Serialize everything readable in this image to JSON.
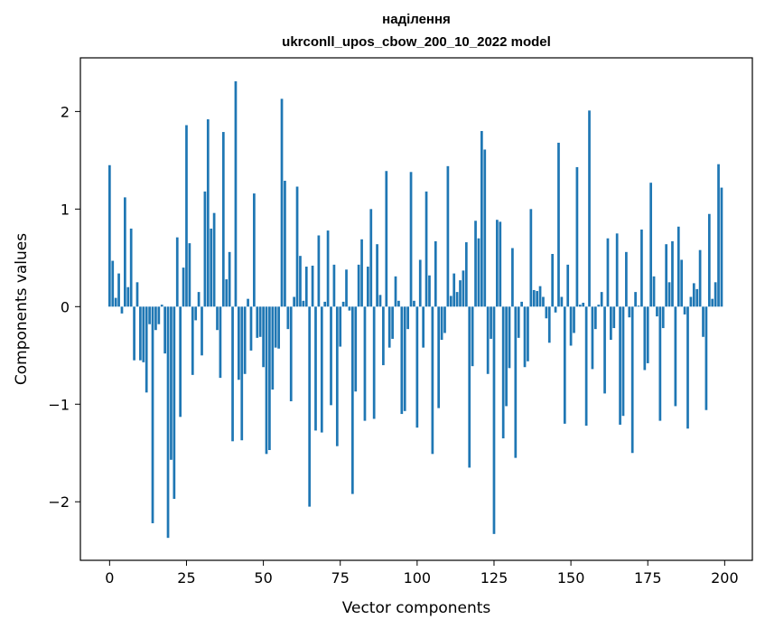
{
  "chart_data": {
    "type": "bar",
    "title": "наділення",
    "subtitle": "ukrconll_upos_cbow_200_10_2022 model",
    "xlabel": "Vector components",
    "ylabel": "Components values",
    "xlim": [
      -9.5,
      209
    ],
    "ylim": [
      -2.6,
      2.55
    ],
    "xticks": [
      0,
      25,
      50,
      75,
      100,
      125,
      150,
      175,
      200
    ],
    "xtick_labels": [
      "0",
      "25",
      "50",
      "75",
      "100",
      "125",
      "150",
      "175",
      "200"
    ],
    "yticks": [
      -2,
      -1,
      0,
      1,
      2
    ],
    "ytick_labels": [
      "−2",
      "−1",
      "0",
      "1",
      "2"
    ],
    "bar_color": "#1f77b4",
    "grid": false,
    "legend": "none",
    "x": [
      0,
      1,
      2,
      3,
      4,
      5,
      6,
      7,
      8,
      9,
      10,
      11,
      12,
      13,
      14,
      15,
      16,
      17,
      18,
      19,
      20,
      21,
      22,
      23,
      24,
      25,
      26,
      27,
      28,
      29,
      30,
      31,
      32,
      33,
      34,
      35,
      36,
      37,
      38,
      39,
      40,
      41,
      42,
      43,
      44,
      45,
      46,
      47,
      48,
      49,
      50,
      51,
      52,
      53,
      54,
      55,
      56,
      57,
      58,
      59,
      60,
      61,
      62,
      63,
      64,
      65,
      66,
      67,
      68,
      69,
      70,
      71,
      72,
      73,
      74,
      75,
      76,
      77,
      78,
      79,
      80,
      81,
      82,
      83,
      84,
      85,
      86,
      87,
      88,
      89,
      90,
      91,
      92,
      93,
      94,
      95,
      96,
      97,
      98,
      99,
      100,
      101,
      102,
      103,
      104,
      105,
      106,
      107,
      108,
      109,
      110,
      111,
      112,
      113,
      114,
      115,
      116,
      117,
      118,
      119,
      120,
      121,
      122,
      123,
      124,
      125,
      126,
      127,
      128,
      129,
      130,
      131,
      132,
      133,
      134,
      135,
      136,
      137,
      138,
      139,
      140,
      141,
      142,
      143,
      144,
      145,
      146,
      147,
      148,
      149,
      150,
      151,
      152,
      153,
      154,
      155,
      156,
      157,
      158,
      159,
      160,
      161,
      162,
      163,
      164,
      165,
      166,
      167,
      168,
      169,
      170,
      171,
      172,
      173,
      174,
      175,
      176,
      177,
      178,
      179,
      180,
      181,
      182,
      183,
      184,
      185,
      186,
      187,
      188,
      189,
      190,
      191,
      192,
      193,
      194,
      195,
      196,
      197,
      198,
      199
    ],
    "values": [
      1.45,
      0.47,
      0.09,
      0.34,
      -0.07,
      1.12,
      0.2,
      0.8,
      -0.55,
      0.25,
      -0.55,
      -0.57,
      -0.88,
      -0.18,
      -2.22,
      -0.24,
      -0.18,
      0.02,
      -0.48,
      -2.37,
      -1.57,
      -1.97,
      0.71,
      -1.13,
      0.4,
      1.86,
      0.65,
      -0.7,
      -0.14,
      0.15,
      -0.5,
      1.18,
      1.92,
      0.8,
      0.96,
      -0.24,
      -0.73,
      1.79,
      0.28,
      0.56,
      -1.38,
      2.31,
      -0.75,
      -1.37,
      -0.69,
      0.08,
      -0.45,
      1.16,
      -0.32,
      -0.31,
      -0.62,
      -1.51,
      -1.47,
      -0.85,
      -0.42,
      -0.43,
      2.13,
      1.29,
      -0.23,
      -0.97,
      0.1,
      1.23,
      0.52,
      0.06,
      0.41,
      -2.05,
      0.42,
      -1.27,
      0.73,
      -1.29,
      0.05,
      0.78,
      -1.01,
      0.43,
      -1.43,
      -0.41,
      0.05,
      0.38,
      -0.04,
      -1.92,
      -0.87,
      0.43,
      0.69,
      -1.17,
      0.41,
      1.0,
      -1.15,
      0.64,
      0.12,
      -0.6,
      1.39,
      -0.42,
      -0.33,
      0.31,
      0.06,
      -1.1,
      -1.07,
      -0.23,
      1.38,
      0.06,
      -1.24,
      0.48,
      -0.42,
      1.18,
      0.32,
      -1.51,
      0.67,
      -1.04,
      -0.34,
      -0.27,
      1.44,
      0.11,
      0.34,
      0.15,
      0.27,
      0.37,
      0.66,
      -1.65,
      -0.61,
      0.88,
      0.7,
      1.8,
      1.61,
      -0.69,
      -0.33,
      -2.33,
      0.89,
      0.87,
      -1.35,
      -1.02,
      -0.63,
      0.6,
      -1.55,
      -0.32,
      0.05,
      -0.62,
      -0.56,
      1.0,
      0.17,
      0.16,
      0.21,
      0.1,
      -0.12,
      -0.37,
      0.54,
      -0.06,
      1.68,
      0.1,
      -1.2,
      0.43,
      -0.4,
      -0.27,
      1.43,
      0.02,
      0.04,
      -1.22,
      2.01,
      -0.64,
      -0.23,
      0.02,
      0.15,
      -0.89,
      0.7,
      -0.34,
      -0.22,
      0.75,
      -1.21,
      -1.12,
      0.56,
      -0.11,
      -1.5,
      0.15,
      0.01,
      0.79,
      -0.65,
      -0.58,
      1.27,
      0.31,
      -0.1,
      -1.17,
      -0.22,
      0.64,
      0.25,
      0.67,
      -1.02,
      0.82,
      0.48,
      -0.08,
      -1.25,
      0.1,
      0.24,
      0.18,
      0.58,
      -0.31,
      -1.06,
      0.95,
      0.08,
      0.25,
      1.46,
      1.22
    ]
  }
}
